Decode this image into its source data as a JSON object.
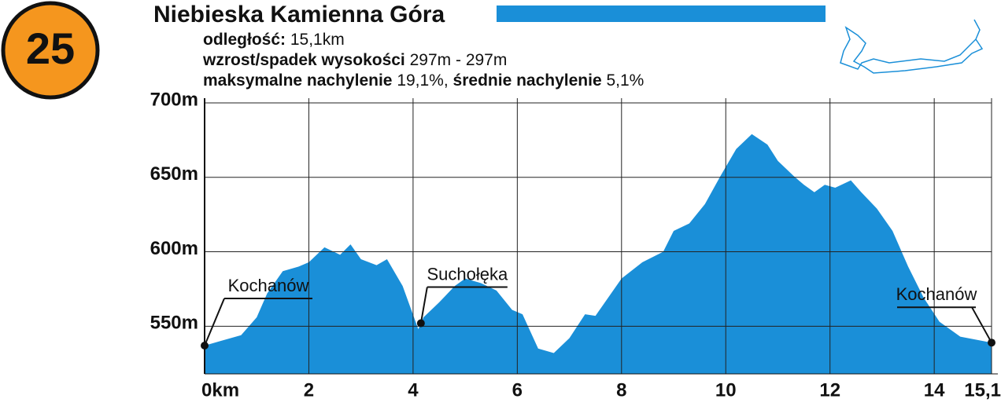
{
  "badge": "25",
  "header": {
    "title": "Niebieska Kamienna Góra",
    "lines": [
      [
        {
          "label": "odległość:",
          "value": "15,1km"
        }
      ],
      [
        {
          "label": "wzrost/spadek wysokości",
          "value": "297m - 297m"
        }
      ],
      [
        {
          "label": "maksymalne nachylenie",
          "value": "19,1%,"
        },
        {
          "label": "średnie nachylenie",
          "value": "5,1%"
        }
      ]
    ]
  },
  "chart_data": {
    "type": "area",
    "color": "#1a8fd8",
    "grid": true,
    "x": [
      0,
      0.3,
      0.7,
      1.0,
      1.2,
      1.5,
      1.8,
      2.0,
      2.3,
      2.6,
      2.8,
      3.0,
      3.3,
      3.5,
      3.8,
      4.1,
      4.2,
      4.5,
      4.8,
      5.0,
      5.3,
      5.6,
      5.9,
      6.1,
      6.4,
      6.7,
      7.0,
      7.3,
      7.5,
      7.8,
      8.0,
      8.4,
      8.8,
      9.0,
      9.3,
      9.6,
      9.9,
      10.2,
      10.5,
      10.8,
      11.0,
      11.3,
      11.5,
      11.7,
      11.9,
      12.1,
      12.4,
      12.6,
      12.9,
      13.2,
      13.5,
      13.8,
      14.1,
      14.5,
      15.1
    ],
    "values": [
      537,
      540,
      544,
      556,
      572,
      587,
      590,
      593,
      603,
      598,
      605,
      595,
      591,
      595,
      577,
      548,
      556,
      566,
      577,
      582,
      579,
      574,
      561,
      558,
      535,
      532,
      542,
      558,
      557,
      572,
      582,
      593,
      600,
      614,
      619,
      632,
      651,
      669,
      679,
      672,
      661,
      651,
      645,
      640,
      645,
      643,
      648,
      640,
      629,
      614,
      590,
      569,
      553,
      543,
      539
    ],
    "xlim": [
      0,
      15.1
    ],
    "ylim": [
      518,
      700
    ],
    "xticks": [
      {
        "value": 0,
        "label": "0km"
      },
      2,
      4,
      6,
      8,
      10,
      12,
      14,
      {
        "value": 15.1,
        "label": "15,1"
      }
    ],
    "yticks": [
      {
        "value": 550,
        "label": "550m"
      },
      {
        "value": 600,
        "label": "600m"
      },
      {
        "value": 650,
        "label": "650m"
      },
      {
        "value": 700,
        "label": "700m"
      }
    ],
    "annotations": [
      {
        "text": "Kochanów",
        "x": 0,
        "y": 537
      },
      {
        "text": "Suchołęka",
        "x": 4.15,
        "y": 552
      },
      {
        "text": "Kochanów",
        "x": 15.1,
        "y": 539
      }
    ]
  }
}
